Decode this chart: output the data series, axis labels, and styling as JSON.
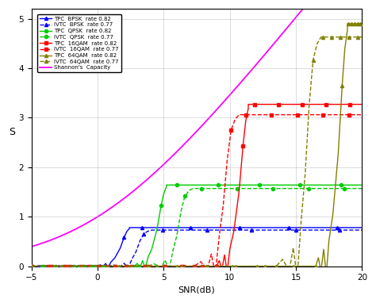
{
  "xlabel": "SNR(dB)",
  "ylabel": "S",
  "xlim": [
    -5,
    20
  ],
  "ylim": [
    0,
    5.2
  ],
  "xticks": [
    -5,
    0,
    5,
    10,
    15,
    20
  ],
  "yticks": [
    0,
    1,
    2,
    3,
    4,
    5
  ],
  "shannon_color": "#FF00FF",
  "bpsk_color": "#0000FF",
  "qpsk_color": "#00CC00",
  "qam16_color": "#FF0000",
  "qam64_color": "#808000",
  "bpsk_tpc_plateau": 0.78,
  "bpsk_ivtc_plateau": 0.73,
  "qpsk_tpc_plateau": 1.64,
  "qpsk_ivtc_plateau": 1.57,
  "qam16_tpc_plateau": 3.27,
  "qam16_ivtc_plateau": 3.06,
  "qam64_tpc_plateau": 4.9,
  "qam64_ivtc_plateau": 4.63,
  "bpsk_tpc_thresh": 2.0,
  "bpsk_ivtc_thresh": 3.2,
  "qpsk_tpc_thresh": 4.8,
  "qpsk_ivtc_thresh": 6.3,
  "qam16_tpc_thresh": 11.0,
  "qam16_ivtc_thresh": 9.8,
  "qam64_tpc_thresh": 18.5,
  "qam64_ivtc_thresh": 16.0,
  "legend_labels": [
    "TPC  BPSK  rate 0.82",
    "IVTC  BPSK  rate 0.77",
    "TPC  QPSK  rate 0.82",
    "IVTC  QPSK  rate 0.77",
    "TPC  16QAM  rate 0.82",
    "IVTC  16QAM  rate 0.77",
    "TPC  64QAM  rate 0.82",
    "IVTC  64QAM  rate 0.77",
    "Shannon's  Capacity"
  ]
}
